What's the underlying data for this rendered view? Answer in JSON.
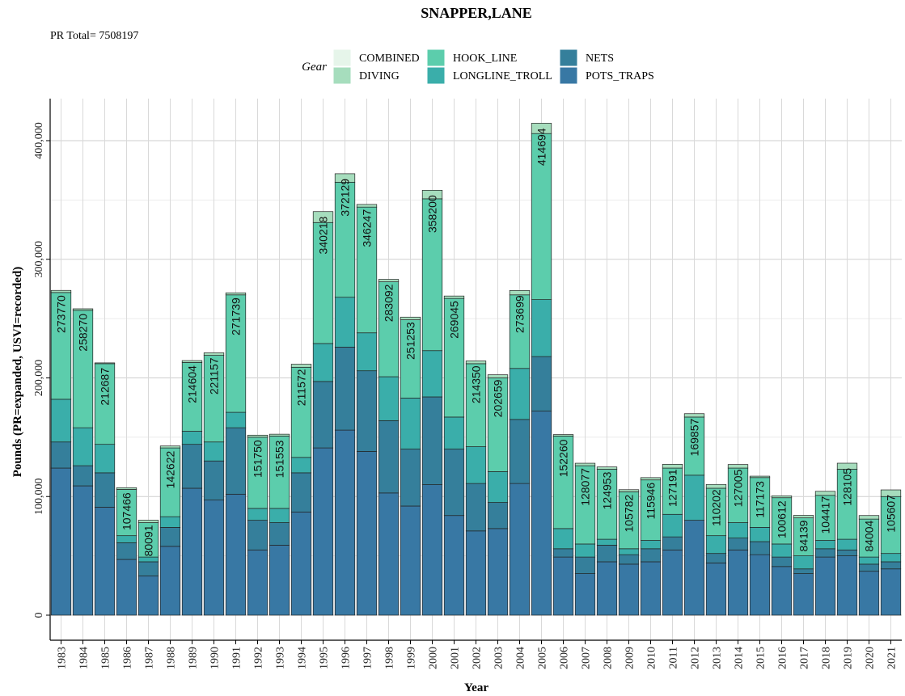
{
  "chart_data": {
    "type": "bar",
    "stacked": true,
    "title": "SNAPPER,LANE",
    "subtitle": "PR Total= 7508197",
    "xlabel": "Year",
    "ylabel": "Pounds (PR=expanded, USVI=recorded)",
    "ylim": [
      0,
      420000
    ],
    "yticks": [
      0,
      100000,
      200000,
      300000,
      400000
    ],
    "ytick_labels": [
      "0",
      "100,000",
      "200,000",
      "300,000",
      "400,000"
    ],
    "grid": true,
    "legend_title": "Gear",
    "legend_position": "top",
    "categories": [
      "1983",
      "1984",
      "1985",
      "1986",
      "1987",
      "1988",
      "1989",
      "1990",
      "1991",
      "1992",
      "1993",
      "1994",
      "1995",
      "1996",
      "1997",
      "1998",
      "1999",
      "2000",
      "2001",
      "2002",
      "2003",
      "2004",
      "2005",
      "2006",
      "2007",
      "2008",
      "2009",
      "2010",
      "2011",
      "2012",
      "2013",
      "2014",
      "2015",
      "2016",
      "2017",
      "2018",
      "2019",
      "2020",
      "2021"
    ],
    "series": [
      {
        "name": "POTS_TRAPS",
        "color": "#3878a4",
        "values": [
          124000,
          109000,
          91000,
          47000,
          33000,
          58000,
          107000,
          97000,
          102000,
          55000,
          59000,
          87000,
          141000,
          156000,
          138000,
          103000,
          92000,
          110000,
          84000,
          71000,
          73000,
          111000,
          172000,
          49000,
          35000,
          45000,
          43000,
          45000,
          55000,
          80000,
          44000,
          55000,
          51000,
          41000,
          35000,
          49000,
          50000,
          37000,
          39000
        ]
      },
      {
        "name": "NETS",
        "color": "#357f9b",
        "values": [
          22000,
          17000,
          29000,
          14000,
          12000,
          16000,
          37000,
          33000,
          56000,
          25000,
          19000,
          33000,
          56000,
          70000,
          68000,
          61000,
          48000,
          74000,
          56000,
          40000,
          22000,
          54000,
          46000,
          7000,
          14000,
          14000,
          8000,
          11000,
          11000,
          0,
          8000,
          10000,
          11000,
          8000,
          4000,
          7000,
          5000,
          6000,
          6000
        ]
      },
      {
        "name": "LONGLINE_TROLL",
        "color": "#3aaeaa",
        "values": [
          36000,
          32000,
          24000,
          6000,
          4000,
          9000,
          11000,
          16000,
          13000,
          10000,
          12000,
          13000,
          32000,
          42000,
          32000,
          37000,
          43000,
          39000,
          27000,
          31000,
          26000,
          43000,
          48000,
          17000,
          11000,
          5000,
          5000,
          7000,
          19000,
          38000,
          15000,
          13000,
          12000,
          11000,
          11000,
          7000,
          9000,
          6000,
          7000
        ]
      },
      {
        "name": "HOOK_LINE",
        "color": "#5ccdac",
        "values": [
          90000,
          99000,
          68000,
          39000,
          29000,
          58000,
          58000,
          73000,
          99000,
          60000,
          61000,
          76000,
          102000,
          97000,
          106000,
          80000,
          66000,
          128000,
          100000,
          70000,
          79000,
          62000,
          140000,
          78000,
          66000,
          59000,
          48000,
          51000,
          39000,
          49000,
          40000,
          46000,
          42000,
          39000,
          32000,
          38000,
          59000,
          32000,
          48000
        ]
      },
      {
        "name": "DIVING",
        "color": "#a6ddbd",
        "values": [
          1770,
          1270,
          687,
          1466,
          2091,
          1622,
          1604,
          2157,
          1739,
          1750,
          1553,
          2572,
          9218,
          7129,
          2247,
          2092,
          2253,
          7200,
          2045,
          2350,
          2659,
          3699,
          8694,
          1260,
          2077,
          1953,
          1782,
          1946,
          3191,
          2857,
          3202,
          3005,
          1173,
          1612,
          2139,
          3417,
          5105,
          3004,
          5607
        ]
      },
      {
        "name": "COMBINED",
        "color": "#e6f5ea",
        "values": [
          0,
          0,
          0,
          0,
          0,
          0,
          0,
          0,
          0,
          0,
          0,
          0,
          0,
          0,
          0,
          0,
          0,
          0,
          0,
          0,
          0,
          0,
          0,
          0,
          0,
          0,
          0,
          0,
          0,
          0,
          0,
          0,
          0,
          0,
          0,
          0,
          0,
          0,
          0
        ]
      }
    ],
    "totals": [
      273770,
      258270,
      212687,
      107466,
      80091,
      142622,
      214604,
      221157,
      271739,
      151750,
      151553,
      211572,
      340218,
      372129,
      346247,
      283092,
      251253,
      358200,
      269045,
      214350,
      202659,
      273699,
      414694,
      152260,
      128077,
      124953,
      105782,
      115946,
      127191,
      169857,
      110202,
      127005,
      117173,
      100612,
      84139,
      104417,
      128105,
      84004,
      105607
    ],
    "total_labels": [
      "273770",
      "258270",
      "212687",
      "107466",
      "80091",
      "142622",
      "214604",
      "221157",
      "271739",
      "151750",
      "151553",
      "211572",
      "340218",
      "372129",
      "346247",
      "283092",
      "251253",
      "358200",
      "269045",
      "214350",
      "202659",
      "273699",
      "414694",
      "152260",
      "128077",
      "124953",
      "105782",
      "115946",
      "127191",
      "169857",
      "110202",
      "127005",
      "117173",
      "100612",
      "84139",
      "104417",
      "128105",
      "84004",
      "105607"
    ],
    "legend_items": [
      {
        "name": "COMBINED",
        "color": "#e6f5ea"
      },
      {
        "name": "DIVING",
        "color": "#a6ddbd"
      },
      {
        "name": "HOOK_LINE",
        "color": "#5ccdac"
      },
      {
        "name": "LONGLINE_TROLL",
        "color": "#3aaeaa"
      },
      {
        "name": "NETS",
        "color": "#357f9b"
      },
      {
        "name": "POTS_TRAPS",
        "color": "#3878a4"
      }
    ]
  }
}
